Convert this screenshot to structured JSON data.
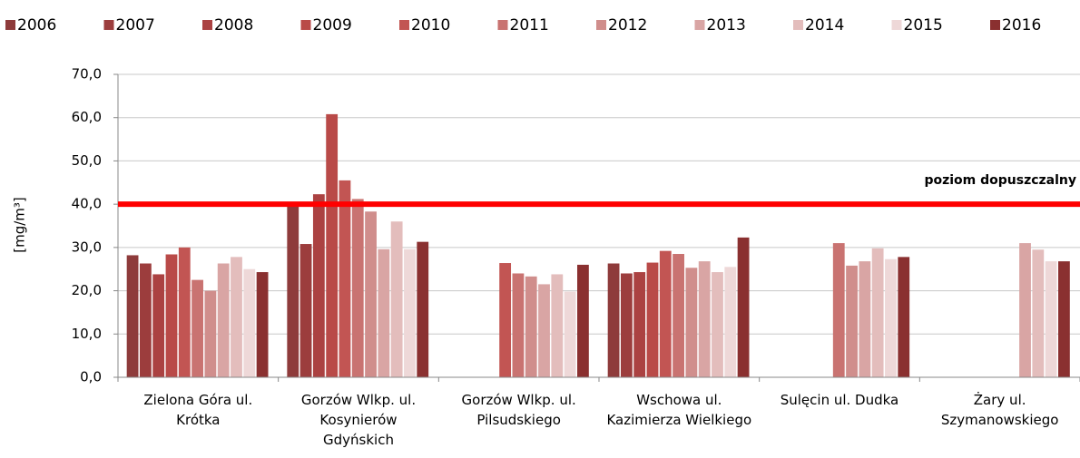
{
  "chart_data": {
    "type": "bar",
    "y_label": "[mg/m³]",
    "categories": [
      "Zielona Góra  ul. Krótka",
      "Gorzów Wlkp.  ul. Kosynierów Gdyńskich",
      "Gorzów Wlkp.  ul. Pilsudskiego",
      "Wschowa ul. Kazimierza Wielkiego",
      "Sulęcin  ul. Dudka",
      "Żary   ul. Szymanowskiego"
    ],
    "series": [
      {
        "name": "2006",
        "color": "#8e3b3b",
        "values": [
          28.2,
          39.5,
          null,
          26.3,
          null,
          null
        ]
      },
      {
        "name": "2007",
        "color": "#9c3d3d",
        "values": [
          26.3,
          30.8,
          null,
          24.0,
          null,
          null
        ]
      },
      {
        "name": "2008",
        "color": "#ab4242",
        "values": [
          23.8,
          42.3,
          null,
          24.3,
          null,
          null
        ]
      },
      {
        "name": "2009",
        "color": "#b94a48",
        "values": [
          28.4,
          60.8,
          null,
          26.5,
          null,
          null
        ]
      },
      {
        "name": "2010",
        "color": "#c25553",
        "values": [
          30.0,
          45.5,
          26.4,
          29.2,
          null,
          null
        ]
      },
      {
        "name": "2011",
        "color": "#c97371",
        "values": [
          22.5,
          41.2,
          24.0,
          28.5,
          31.0,
          null
        ]
      },
      {
        "name": "2012",
        "color": "#d08e8c",
        "values": [
          20.0,
          38.3,
          23.3,
          25.3,
          25.8,
          null
        ]
      },
      {
        "name": "2013",
        "color": "#d9a5a4",
        "values": [
          26.3,
          29.6,
          21.5,
          26.8,
          26.8,
          31.0
        ]
      },
      {
        "name": "2014",
        "color": "#e3bdbc",
        "values": [
          27.8,
          36.0,
          23.8,
          24.3,
          29.8,
          29.5
        ]
      },
      {
        "name": "2015",
        "color": "#eed8d8",
        "values": [
          25.0,
          29.6,
          19.8,
          25.5,
          27.3,
          26.8
        ]
      },
      {
        "name": "2016",
        "color": "#8a3030",
        "values": [
          24.3,
          31.3,
          26.0,
          32.3,
          27.8,
          26.8
        ]
      }
    ],
    "ylim": [
      0,
      70
    ],
    "yticks": [
      {
        "value": 0,
        "label": "0,0"
      },
      {
        "value": 10,
        "label": "10,0"
      },
      {
        "value": 20,
        "label": "20,0"
      },
      {
        "value": 30,
        "label": "30,0"
      },
      {
        "value": 40,
        "label": "40,0"
      },
      {
        "value": 50,
        "label": "50,0"
      },
      {
        "value": 60,
        "label": "60,0"
      },
      {
        "value": 70,
        "label": "70,0"
      }
    ],
    "grid": true,
    "threshold": {
      "value": 40,
      "label": "poziom dopuszczalny",
      "color": "#ff0000"
    }
  }
}
